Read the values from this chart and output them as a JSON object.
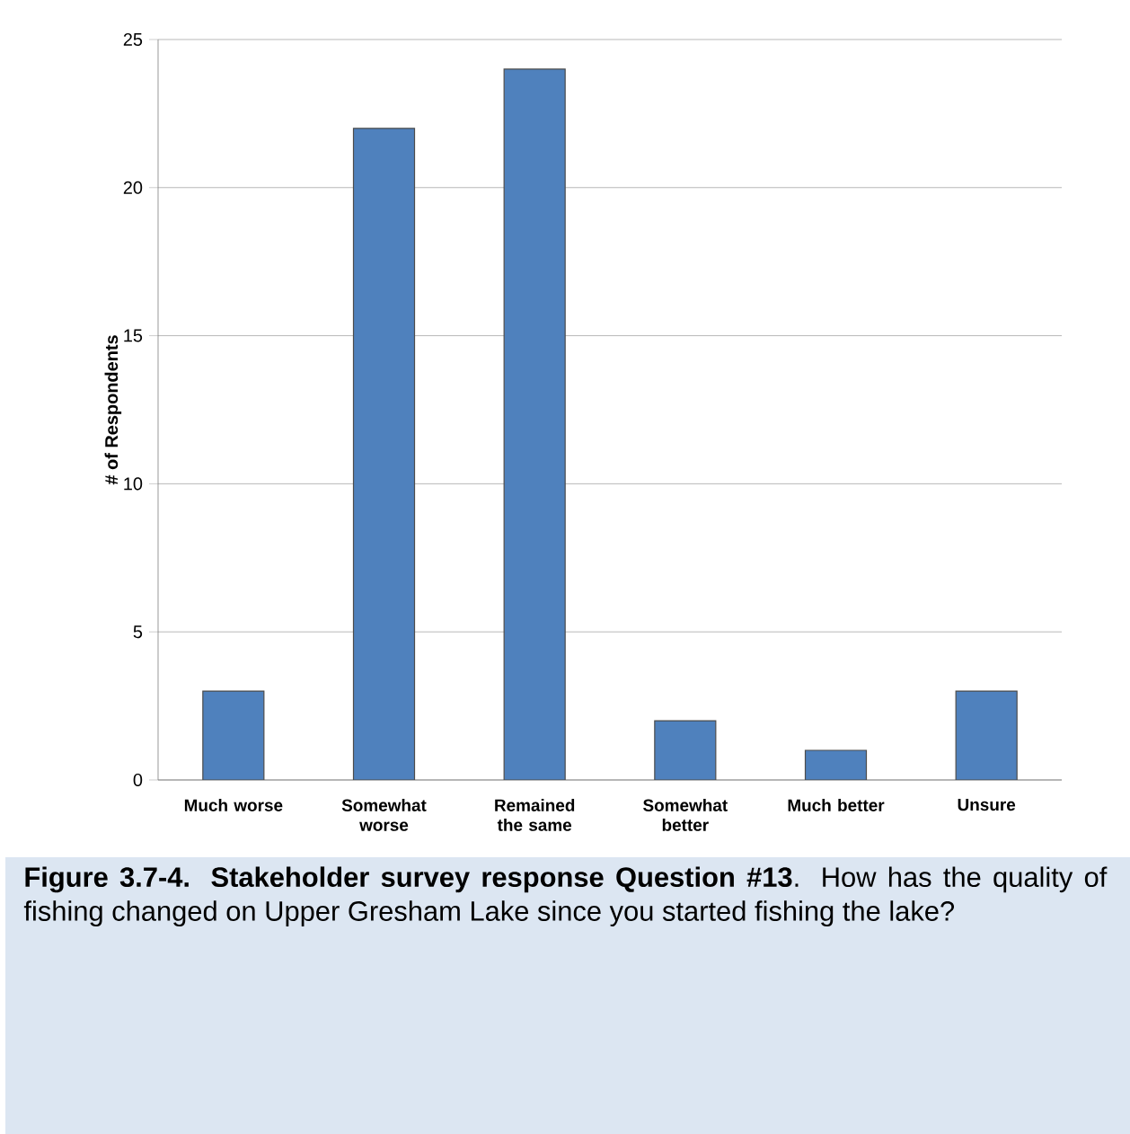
{
  "chart_data": {
    "type": "bar",
    "ylabel": "# of Respondents",
    "categories": [
      "Much worse",
      "Somewhat worse",
      "Remained the same",
      "Somewhat better",
      "Much better",
      "Unsure"
    ],
    "values": [
      3,
      22,
      24,
      2,
      1,
      3
    ],
    "color": "#4f81bd",
    "ylim": [
      0,
      25
    ],
    "yticks": [
      0,
      5,
      10,
      15,
      20,
      25
    ],
    "grid": "y",
    "annotations": [
      "**Figure 3.7-4. Stakeholder survey response Question #13**. How has the quality of fishing changed on Upper Gresham Lake since you started fishing the lake?"
    ]
  }
}
